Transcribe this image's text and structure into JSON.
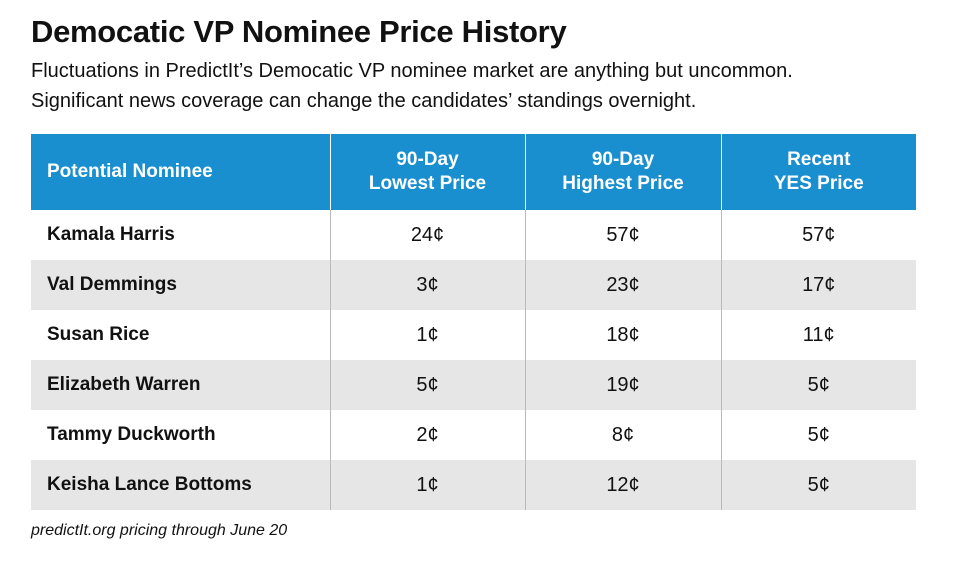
{
  "title": "Democatic VP Nominee Price History",
  "subtitle": [
    "Fluctuations in PredictIt’s Democatic VP nominee market are anything but uncommon.",
    "Significant news coverage can change the candidates’ standings overnight."
  ],
  "colors": {
    "header_bg": "#1a8fd0",
    "stripe_bg": "#e6e6e7"
  },
  "chart_data": {
    "type": "table",
    "columns": [
      [
        "Potential Nominee"
      ],
      [
        "90-Day",
        "Lowest Price"
      ],
      [
        "90-Day",
        "Highest Price"
      ],
      [
        "Recent",
        "YES Price"
      ]
    ],
    "rows": [
      [
        "Kamala Harris",
        "24¢",
        "57¢",
        "57¢"
      ],
      [
        "Val Demmings",
        "3¢",
        "23¢",
        "17¢"
      ],
      [
        "Susan Rice",
        "1¢",
        "18¢",
        "11¢"
      ],
      [
        "Elizabeth Warren",
        "5¢",
        "19¢",
        "5¢"
      ],
      [
        "Tammy Duckworth",
        "2¢",
        "8¢",
        "5¢"
      ],
      [
        "Keisha Lance Bottoms",
        "1¢",
        "12¢",
        "5¢"
      ]
    ]
  },
  "footnote": "predictIt.org pricing through June 20"
}
